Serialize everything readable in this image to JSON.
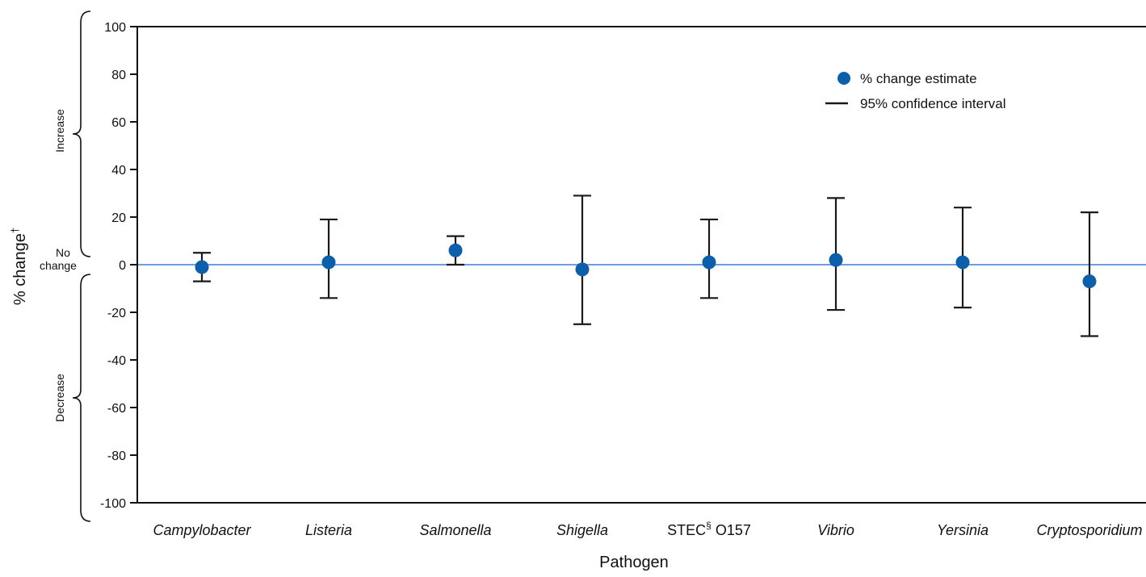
{
  "colors": {
    "point": "#0b5fab",
    "error_bar": "#1a1a1a",
    "zero_line": "#6f9be0",
    "axis": "#111111"
  },
  "chart_data": {
    "type": "scatter",
    "title": "",
    "xlabel": "Pathogen",
    "ylabel": "% change",
    "ylabel_sup": "†",
    "ylim": [
      -100,
      100
    ],
    "yticks": [
      100,
      80,
      60,
      40,
      20,
      0,
      -20,
      -40,
      -60,
      -80,
      -100
    ],
    "ytick_labels": [
      "100",
      "80",
      "60",
      "40",
      "20",
      "0",
      "-20",
      "-40",
      "-60",
      "-80",
      "-100"
    ],
    "reference_line": 0,
    "grid": false,
    "legend_position": "top-right",
    "legend": {
      "point_label": "% change estimate",
      "interval_label": "95% confidence interval"
    },
    "side_labels": {
      "increase": "Increase",
      "no_change_1": "No",
      "no_change_2": "change",
      "decrease": "Decrease"
    },
    "categories": [
      {
        "label": "Campylobacter",
        "italic": true
      },
      {
        "label": "Listeria",
        "italic": true
      },
      {
        "label": "Salmonella",
        "italic": true
      },
      {
        "label": "Shigella",
        "italic": true
      },
      {
        "label": "STEC",
        "sup": "§",
        "suffix": " O157",
        "italic": false
      },
      {
        "label": "Vibrio",
        "italic": true
      },
      {
        "label": "Yersinia",
        "italic": true
      },
      {
        "label": "Cryptosporidium",
        "italic": true
      }
    ],
    "series": [
      {
        "name": "% change estimate",
        "values": [
          -1,
          1,
          6,
          -2,
          1,
          2,
          1,
          -7
        ],
        "ci_low": [
          -7,
          -14,
          0,
          -25,
          -14,
          -19,
          -18,
          -30
        ],
        "ci_high": [
          5,
          19,
          12,
          29,
          19,
          28,
          24,
          22
        ]
      }
    ]
  }
}
